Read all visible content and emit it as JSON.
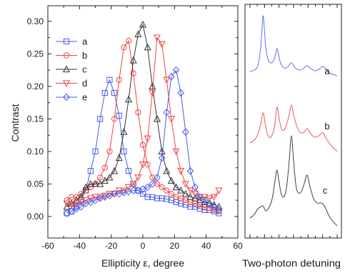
{
  "chart_data": [
    {
      "type": "line",
      "xlabel": "Ellipticity ε, degree",
      "ylabel": "Contrast",
      "xlim": [
        -60,
        60
      ],
      "ylim": [
        -0.033,
        0.324
      ],
      "xticks": [
        -60,
        -40,
        -20,
        0,
        20,
        40,
        60
      ],
      "yticks": [
        "0.00",
        "0.05",
        "0.10",
        "0.15",
        "0.20",
        "0.25",
        "0.30"
      ],
      "grid": false,
      "legend": "top-left",
      "x": [
        -48,
        -45,
        -42,
        -39,
        -36,
        -33,
        -30,
        -27,
        -24,
        -21,
        -18,
        -15,
        -12,
        -9,
        -6,
        -3,
        0,
        3,
        6,
        9,
        12,
        15,
        18,
        21,
        24,
        27,
        30,
        33,
        36,
        39,
        42,
        45,
        48
      ],
      "series": [
        {
          "name": "a",
          "color": "#4a5ce6",
          "marker": "square",
          "values": [
            0.005,
            0.008,
            0.015,
            0.025,
            0.04,
            0.07,
            0.1,
            0.15,
            0.19,
            0.21,
            0.19,
            0.155,
            0.1,
            0.07,
            0.05,
            0.04,
            0.035,
            0.03,
            0.03,
            0.028,
            0.028,
            0.027,
            0.025,
            0.022,
            0.02,
            0.018,
            0.015,
            0.015,
            0.012,
            0.01,
            0.01,
            0.008,
            0.005
          ]
        },
        {
          "name": "b",
          "color": "#ec4545",
          "marker": "circle",
          "values": [
            0.025,
            0.03,
            0.03,
            0.035,
            0.04,
            0.045,
            0.05,
            0.06,
            0.075,
            0.1,
            0.15,
            0.21,
            0.26,
            0.27,
            0.22,
            0.16,
            0.11,
            0.08,
            0.06,
            0.05,
            0.045,
            0.04,
            0.035,
            0.03,
            0.028,
            0.025,
            0.022,
            0.02,
            0.018,
            0.015,
            0.013,
            0.01,
            0.008
          ]
        },
        {
          "name": "c",
          "color": "#333333",
          "marker": "triangle-up",
          "values": [
            0.015,
            0.02,
            0.025,
            0.03,
            0.045,
            0.05,
            0.05,
            0.05,
            0.055,
            0.06,
            0.07,
            0.09,
            0.13,
            0.18,
            0.24,
            0.28,
            0.295,
            0.26,
            0.2,
            0.15,
            0.1,
            0.07,
            0.055,
            0.045,
            0.04,
            0.035,
            0.03,
            0.028,
            0.025,
            0.022,
            0.02,
            0.018,
            0.015
          ]
        },
        {
          "name": "d",
          "color": "#ec4545",
          "marker": "triangle-down",
          "values": [
            0.02,
            0.018,
            0.02,
            0.022,
            0.025,
            0.028,
            0.03,
            0.03,
            0.032,
            0.035,
            0.035,
            0.04,
            0.04,
            0.045,
            0.05,
            0.06,
            0.08,
            0.12,
            0.19,
            0.275,
            0.265,
            0.21,
            0.15,
            0.1,
            0.07,
            0.05,
            0.04,
            0.035,
            0.03,
            0.03,
            0.028,
            0.03,
            0.04
          ]
        },
        {
          "name": "e",
          "color": "#4a5ce6",
          "marker": "diamond",
          "values": [
            0.005,
            0.008,
            0.012,
            0.015,
            0.02,
            0.022,
            0.025,
            0.028,
            0.03,
            0.032,
            0.035,
            0.035,
            0.037,
            0.038,
            0.04,
            0.04,
            0.042,
            0.045,
            0.05,
            0.06,
            0.09,
            0.16,
            0.215,
            0.225,
            0.19,
            0.13,
            0.07,
            0.045,
            0.03,
            0.025,
            0.02,
            0.015,
            0.01
          ]
        }
      ]
    },
    {
      "type": "line",
      "xlabel": "Two-photon detuning",
      "xlim": [
        0,
        100
      ],
      "grid": false,
      "series": [
        {
          "name": "a",
          "color": "#5f6ff2",
          "points": [
            [
              0,
              0.8
            ],
            [
              5,
              1.0
            ],
            [
              9,
              1.6
            ],
            [
              12,
              3.8
            ],
            [
              13.5,
              6.3
            ],
            [
              15,
              8.6
            ],
            [
              16.5,
              6.8
            ],
            [
              18,
              4.3
            ],
            [
              21,
              2.4
            ],
            [
              25,
              2.0
            ],
            [
              28,
              2.6
            ],
            [
              30,
              3.6
            ],
            [
              31,
              4.0
            ],
            [
              32.5,
              3.4
            ],
            [
              35,
              2.0
            ],
            [
              39,
              1.3
            ],
            [
              43,
              1.4
            ],
            [
              47.5,
              2.0
            ],
            [
              52,
              1.3
            ],
            [
              57,
              1.0
            ],
            [
              62,
              1.3
            ],
            [
              65.5,
              1.6
            ],
            [
              70,
              1.2
            ],
            [
              75,
              0.9
            ],
            [
              80,
              1.2
            ],
            [
              83.5,
              1.5
            ],
            [
              88,
              1.0
            ],
            [
              93,
              0.5
            ],
            [
              100,
              0.2
            ]
          ]
        },
        {
          "name": "b",
          "color": "#ef5a5a",
          "points": [
            [
              0,
              1.5
            ],
            [
              5,
              1.9
            ],
            [
              9,
              2.7
            ],
            [
              12,
              4.0
            ],
            [
              15,
              5.7
            ],
            [
              17,
              4.5
            ],
            [
              20,
              2.7
            ],
            [
              24,
              2.3
            ],
            [
              28,
              3.7
            ],
            [
              31,
              6.5
            ],
            [
              34,
              4.5
            ],
            [
              37,
              3.3
            ],
            [
              41,
              3.7
            ],
            [
              45,
              5.5
            ],
            [
              47.5,
              6.8
            ],
            [
              50,
              5.5
            ],
            [
              54,
              3.7
            ],
            [
              58,
              2.9
            ],
            [
              62,
              3.0
            ],
            [
              65.5,
              3.5
            ],
            [
              69,
              2.9
            ],
            [
              74,
              2.3
            ],
            [
              79,
              2.5
            ],
            [
              83.5,
              2.9
            ],
            [
              88,
              2.0
            ],
            [
              94,
              1.0
            ],
            [
              100,
              0.3
            ]
          ]
        },
        {
          "name": "c",
          "color": "#404040",
          "points": [
            [
              0,
              1.3
            ],
            [
              5,
              1.8
            ],
            [
              9,
              2.6
            ],
            [
              12,
              2.8
            ],
            [
              15,
              3.0
            ],
            [
              18,
              2.3
            ],
            [
              22,
              2.8
            ],
            [
              26,
              4.3
            ],
            [
              29,
              6.8
            ],
            [
              31,
              8.0
            ],
            [
              33,
              6.6
            ],
            [
              36,
              4.6
            ],
            [
              39,
              4.3
            ],
            [
              42,
              5.6
            ],
            [
              45,
              9.3
            ],
            [
              47.5,
              12.8
            ],
            [
              50,
              9.3
            ],
            [
              53,
              5.6
            ],
            [
              56,
              4.8
            ],
            [
              59,
              5.0
            ],
            [
              62,
              6.0
            ],
            [
              65.5,
              7.3
            ],
            [
              69,
              5.6
            ],
            [
              73,
              4.0
            ],
            [
              77,
              3.4
            ],
            [
              80,
              3.4
            ],
            [
              83.5,
              3.3
            ],
            [
              87,
              2.6
            ],
            [
              92,
              1.3
            ],
            [
              100,
              0.2
            ]
          ]
        }
      ]
    }
  ]
}
